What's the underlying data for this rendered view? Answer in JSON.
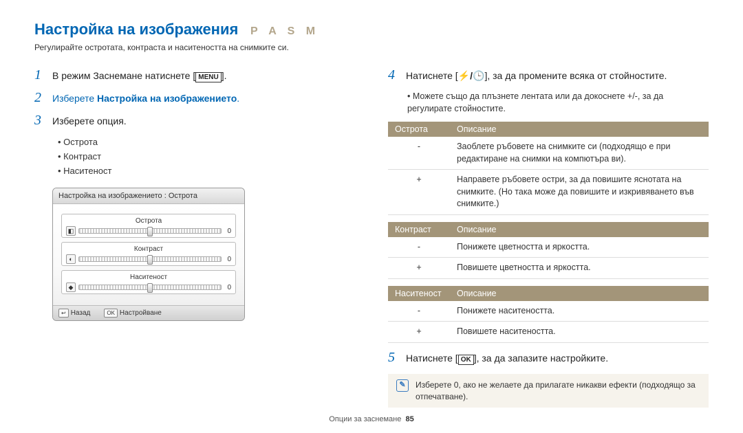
{
  "title": "Настройка на изображения",
  "mode_letters": "P A S M",
  "subtitle": "Регулирайте остротата, контраста и наситеността на снимките си.",
  "left": {
    "step1": {
      "num": "1",
      "pre": "В режим Заснемане натиснете [",
      "button": "MENU",
      "post": "]."
    },
    "step2": {
      "num": "2",
      "pre": "Изберете ",
      "bold": "Настройка на изображението",
      "post": "."
    },
    "step3": {
      "num": "3",
      "text": "Изберете опция."
    },
    "options": [
      "Острота",
      "Контраст",
      "Наситеност"
    ],
    "lcd": {
      "header": "Настройка на изображението : Острота",
      "sliders": [
        {
          "label": "Острота",
          "icon": "◧",
          "value": "0"
        },
        {
          "label": "Контраст",
          "icon": "◐",
          "value": "0"
        },
        {
          "label": "Наситеност",
          "icon": "◆",
          "value": "0"
        }
      ],
      "footer_back_key": "↩",
      "footer_back": "Назад",
      "footer_ok_key": "OK",
      "footer_ok": "Настройване"
    }
  },
  "right": {
    "step4": {
      "num": "4",
      "pre": "Натиснете [",
      "icons": "⚡/🕒",
      "post": "], за да промените всяка от стойностите."
    },
    "step4_sub": "Можете също да плъзнете лентата или да докоснете +/-, за да регулирате стойностите.",
    "tables": {
      "sharpness": {
        "header1": "Острота",
        "header2": "Описание",
        "rows": [
          {
            "k": "-",
            "v": "Заоблете ръбовете на снимките си (подходящо е при редактиране на снимки на компютъра ви)."
          },
          {
            "k": "+",
            "v": "Направете ръбовете остри, за да повишите яснотата на снимките. (Но така може да повишите и изкривяването във снимките.)"
          }
        ]
      },
      "contrast": {
        "header1": "Контраст",
        "header2": "Описание",
        "rows": [
          {
            "k": "-",
            "v": "Понижете цветността и яркостта."
          },
          {
            "k": "+",
            "v": "Повишете цветността и яркостта."
          }
        ]
      },
      "saturation": {
        "header1": "Наситеност",
        "header2": "Описание",
        "rows": [
          {
            "k": "-",
            "v": "Понижете наситеността."
          },
          {
            "k": "+",
            "v": "Повишете наситеността."
          }
        ]
      }
    },
    "step5": {
      "num": "5",
      "pre": "Натиснете [",
      "button": "OK",
      "post": "], за да запазите настройките."
    },
    "tip": "Изберете 0, ако не желаете да прилагате никакви ефекти (подходящо за отпечатване)."
  },
  "footer": {
    "text": "Опции за заснемане",
    "page": "85"
  },
  "colors": {
    "accent": "#0066b3",
    "table_header": "#a39579",
    "tip_bg": "#f6f3ec",
    "mode_letters": "#b3a68c"
  }
}
